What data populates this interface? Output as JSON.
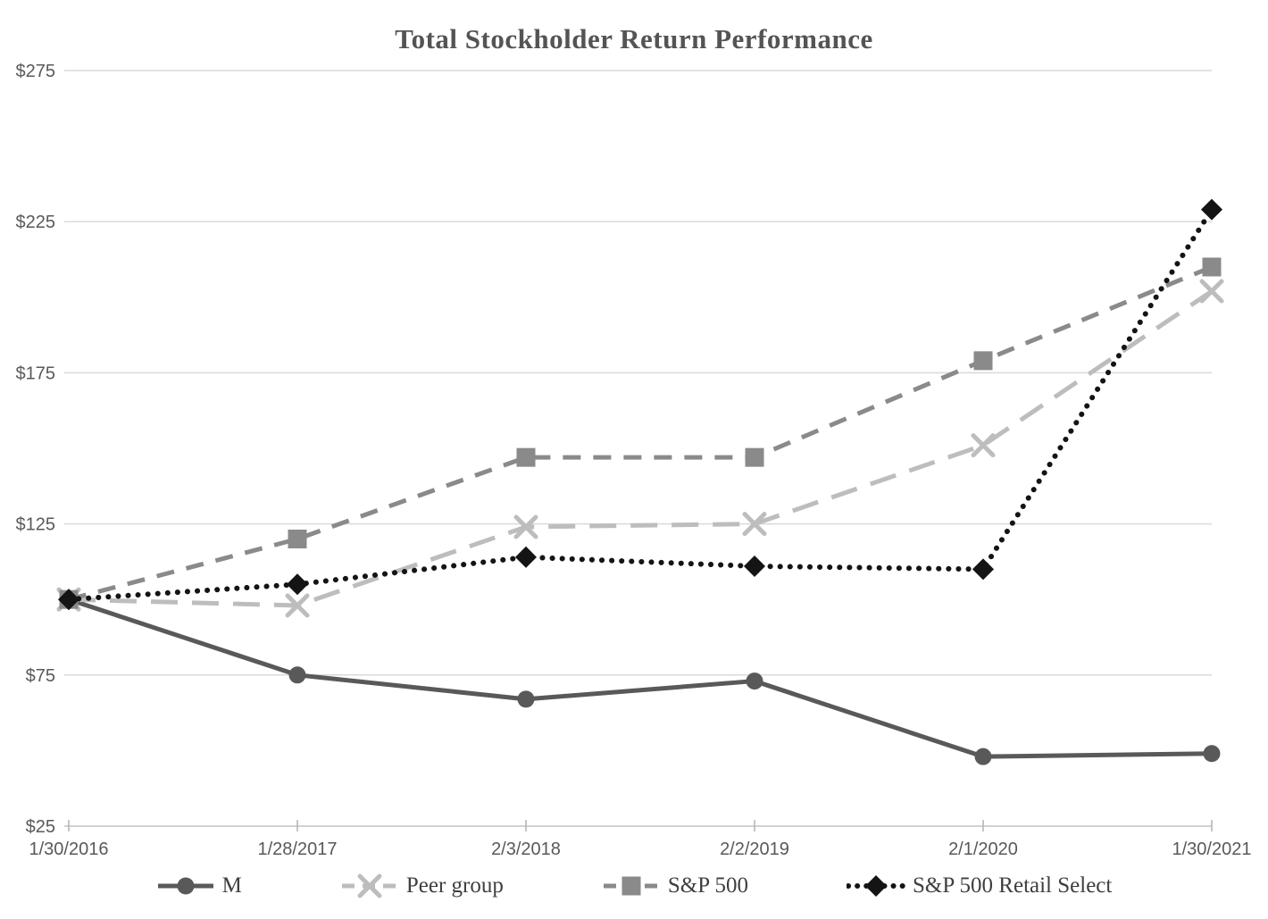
{
  "chart_data": {
    "type": "line",
    "title": "Total Stockholder Return Performance",
    "categories": [
      "1/30/2016",
      "1/28/2017",
      "2/3/2018",
      "2/2/2019",
      "2/1/2020",
      "1/30/2021"
    ],
    "series": [
      {
        "name": "M",
        "values": [
          100,
          75,
          67,
          73,
          48,
          49
        ],
        "color": "#595959",
        "marker": "circle",
        "line_style": "solid"
      },
      {
        "name": "Peer group",
        "values": [
          100,
          98,
          124,
          125,
          151,
          202
        ],
        "color": "#bdbdbd",
        "marker": "x",
        "line_style": "long-dash"
      },
      {
        "name": "S&P 500",
        "values": [
          100,
          120,
          147,
          147,
          179,
          210
        ],
        "color": "#8a8a8a",
        "marker": "square",
        "line_style": "dash"
      },
      {
        "name": "S&P 500 Retail Select",
        "values": [
          100,
          105,
          114,
          111,
          110,
          229
        ],
        "color": "#141414",
        "marker": "diamond",
        "line_style": "dot"
      }
    ],
    "y_tick_labels": [
      "$275",
      "$225",
      "$175",
      "$125",
      "$75",
      "$25"
    ],
    "y_tick_values": [
      275,
      225,
      175,
      125,
      75,
      25
    ],
    "ylim": [
      25,
      275
    ],
    "currency_prefix": "$",
    "grid": "horizontal",
    "legend_position": "bottom",
    "colors": {
      "gridline": "#dadada",
      "axis_line": "#c3c3c3",
      "tick_mark": "#b3b3b3",
      "axis_label": "#595959",
      "title_text": "#545454"
    }
  }
}
